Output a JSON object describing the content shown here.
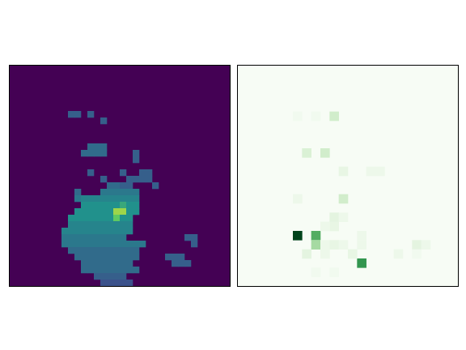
{
  "chart_data": [
    {
      "type": "heatmap",
      "color": "viridis",
      "tick_labels": false,
      "xlim": [
        0,
        34
      ],
      "ylim": [
        0,
        34
      ],
      "color_range": [
        0,
        1
      ],
      "runs": [
        [
          7,
          9,
          10,
          0.3
        ],
        [
          7,
          12,
          12,
          0.3
        ],
        [
          8,
          14,
          14,
          0.3
        ],
        [
          12,
          12,
          14,
          0.35
        ],
        [
          13,
          11,
          14,
          0.35
        ],
        [
          13,
          19,
          19,
          0.3
        ],
        [
          14,
          19,
          19,
          0.3
        ],
        [
          16,
          12,
          12,
          0.3
        ],
        [
          16,
          17,
          17,
          0.3
        ],
        [
          16,
          20,
          21,
          0.3
        ],
        [
          17,
          14,
          14,
          0.3
        ],
        [
          17,
          18,
          21,
          0.3
        ],
        [
          18,
          15,
          16,
          0.35
        ],
        [
          18,
          17,
          18,
          0.3
        ],
        [
          18,
          22,
          22,
          0.3
        ],
        [
          19,
          10,
          10,
          0.35
        ],
        [
          19,
          14,
          19,
          0.4
        ],
        [
          20,
          10,
          10,
          0.4
        ],
        [
          20,
          11,
          19,
          0.45
        ],
        [
          21,
          11,
          16,
          0.5
        ],
        [
          21,
          17,
          17,
          0.6
        ],
        [
          21,
          18,
          19,
          0.5
        ],
        [
          22,
          10,
          15,
          0.5
        ],
        [
          22,
          16,
          17,
          0.85
        ],
        [
          22,
          18,
          19,
          0.5
        ],
        [
          23,
          9,
          15,
          0.5
        ],
        [
          23,
          16,
          16,
          0.75
        ],
        [
          23,
          17,
          18,
          0.5
        ],
        [
          24,
          9,
          18,
          0.45
        ],
        [
          25,
          8,
          18,
          0.45
        ],
        [
          26,
          8,
          17,
          0.4
        ],
        [
          26,
          27,
          28,
          0.3
        ],
        [
          27,
          8,
          20,
          0.4
        ],
        [
          27,
          28,
          28,
          0.3
        ],
        [
          28,
          9,
          19,
          0.35
        ],
        [
          29,
          10,
          19,
          0.35
        ],
        [
          29,
          24,
          26,
          0.3
        ],
        [
          30,
          11,
          18,
          0.35
        ],
        [
          30,
          25,
          27,
          0.3
        ],
        [
          31,
          11,
          19,
          0.35
        ],
        [
          32,
          13,
          17,
          0.3
        ],
        [
          33,
          14,
          18,
          0.25
        ]
      ]
    },
    {
      "type": "heatmap",
      "color": "Greens",
      "tick_labels": false,
      "xlim": [
        0,
        24
      ],
      "ylim": [
        0,
        24
      ],
      "color_range": [
        0,
        1
      ],
      "cells": [
        [
          6,
          18,
          1.0
        ],
        [
          8,
          18,
          0.6
        ],
        [
          8,
          19,
          0.35
        ],
        [
          13,
          21,
          0.7
        ],
        [
          10,
          5,
          0.2
        ],
        [
          7,
          9,
          0.15
        ],
        [
          9,
          9,
          0.2
        ],
        [
          11,
          11,
          0.08
        ],
        [
          14,
          11,
          0.05
        ],
        [
          15,
          11,
          0.05
        ],
        [
          11,
          14,
          0.2
        ],
        [
          6,
          14,
          0.05
        ],
        [
          10,
          16,
          0.1
        ],
        [
          11,
          16,
          0.05
        ],
        [
          10,
          17,
          0.08
        ],
        [
          9,
          17,
          0.05
        ],
        [
          13,
          18,
          0.05
        ],
        [
          9,
          19,
          0.05
        ],
        [
          10,
          19,
          0.08
        ],
        [
          11,
          19,
          0.05
        ],
        [
          13,
          19,
          0.05
        ],
        [
          7,
          20,
          0.1
        ],
        [
          9,
          20,
          0.05
        ],
        [
          12,
          20,
          0.08
        ],
        [
          19,
          19,
          0.1
        ],
        [
          20,
          19,
          0.05
        ],
        [
          17,
          20,
          0.05
        ],
        [
          19,
          20,
          0.03
        ],
        [
          6,
          5,
          0.03
        ],
        [
          8,
          5,
          0.03
        ],
        [
          8,
          22,
          0.03
        ],
        [
          10,
          22,
          0.03
        ]
      ]
    }
  ]
}
